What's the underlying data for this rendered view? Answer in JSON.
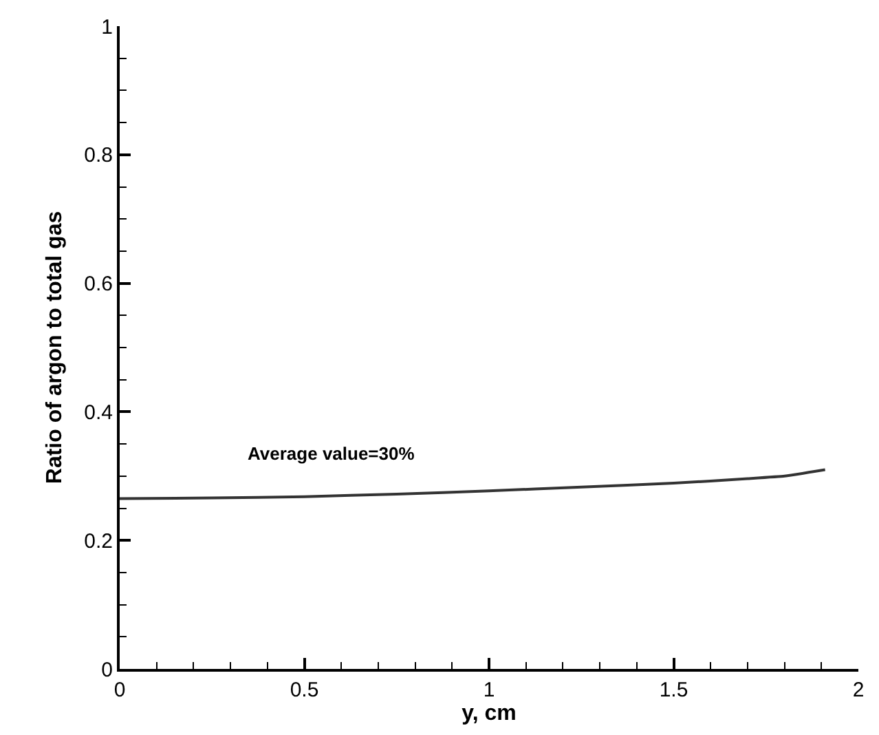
{
  "chart_data": {
    "type": "line",
    "xlabel": "y, cm",
    "ylabel": "Ratio of argon to total gas",
    "annotations": [
      "Average value=30%"
    ],
    "x": [
      0,
      0.25,
      0.5,
      0.75,
      1.0,
      1.25,
      1.5,
      1.7,
      1.8,
      1.91
    ],
    "series": [
      {
        "color": "#333333",
        "values": [
          0.265,
          0.266,
          0.268,
          0.272,
          0.277,
          0.283,
          0.289,
          0.296,
          0.3,
          0.31
        ]
      }
    ],
    "xlim": [
      0,
      2
    ],
    "ylim": [
      0,
      1
    ],
    "xticks": [
      0,
      {
        "value": 0.1,
        "label": null
      },
      {
        "value": 0.2,
        "label": null
      },
      {
        "value": 0.3,
        "label": null
      },
      {
        "value": 0.4,
        "label": null
      },
      0.5,
      {
        "value": 0.6,
        "label": null
      },
      {
        "value": 0.7,
        "label": null
      },
      {
        "value": 0.8,
        "label": null
      },
      {
        "value": 0.9,
        "label": null
      },
      1,
      {
        "value": 1.1,
        "label": null
      },
      {
        "value": 1.2,
        "label": null
      },
      {
        "value": 1.3,
        "label": null
      },
      {
        "value": 1.4,
        "label": null
      },
      1.5,
      {
        "value": 1.6,
        "label": null
      },
      {
        "value": 1.7,
        "label": null
      },
      {
        "value": 1.8,
        "label": null
      },
      {
        "value": 1.9,
        "label": null
      },
      2
    ],
    "yticks": [
      0,
      {
        "value": 0.05,
        "label": null
      },
      {
        "value": 0.1,
        "label": null
      },
      {
        "value": 0.15,
        "label": null
      },
      0.2,
      {
        "value": 0.25,
        "label": null
      },
      {
        "value": 0.3,
        "label": null
      },
      {
        "value": 0.35,
        "label": null
      },
      0.4,
      {
        "value": 0.45,
        "label": null
      },
      {
        "value": 0.5,
        "label": null
      },
      {
        "value": 0.55,
        "label": null
      },
      0.6,
      {
        "value": 0.65,
        "label": null
      },
      {
        "value": 0.7,
        "label": null
      },
      {
        "value": 0.75,
        "label": null
      },
      0.8,
      {
        "value": 0.85,
        "label": null
      },
      {
        "value": 0.9,
        "label": null
      },
      {
        "value": 0.95,
        "label": null
      },
      1
    ],
    "marker": "none",
    "line_style": "solid"
  }
}
